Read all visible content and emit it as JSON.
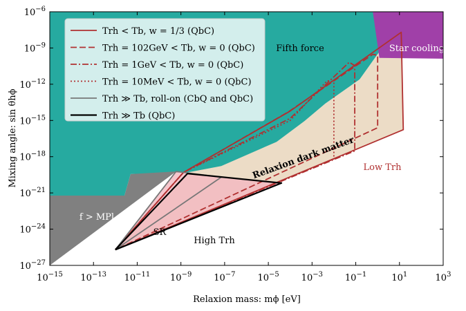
{
  "chart_data": {
    "type": "region",
    "xlabel": "Relaxion mass: mϕ [eV]",
    "ylabel": "Mixing angle: sin θhϕ",
    "xlog": true,
    "ylog": true,
    "xlim": [
      1e-15,
      1000.0
    ],
    "ylim": [
      1e-27,
      1e-06
    ],
    "xticks": [
      {
        "value": 1e-15,
        "label": "10−15"
      },
      {
        "value": 1e-13,
        "label": "10−13"
      },
      {
        "value": 1e-11,
        "label": "10−11"
      },
      {
        "value": 1e-09,
        "label": "10−9"
      },
      {
        "value": 1e-07,
        "label": "10−7"
      },
      {
        "value": 1e-05,
        "label": "10−5"
      },
      {
        "value": 0.001,
        "label": "10−3"
      },
      {
        "value": 0.1,
        "label": "10−1"
      },
      {
        "value": 10,
        "label": "101"
      },
      {
        "value": 1000,
        "label": "103"
      }
    ],
    "yticks": [
      {
        "value": 1e-27,
        "label": "10−27"
      },
      {
        "value": 1e-24,
        "label": "10−24"
      },
      {
        "value": 1e-21,
        "label": "10−21"
      },
      {
        "value": 1e-18,
        "label": "10−18"
      },
      {
        "value": 1e-15,
        "label": "10−15"
      },
      {
        "value": 1e-12,
        "label": "10−12"
      },
      {
        "value": 1e-09,
        "label": "10−9"
      },
      {
        "value": 1e-06,
        "label": "10−6"
      }
    ],
    "regions": [
      {
        "color": "#ecdcc6",
        "points": [
          [
            1e-12,
            2e-26
          ],
          [
            2e-09,
            5e-20
          ],
          [
            2.4e-05,
            1.7e-17
          ],
          [
            0.004,
            2.5e-14
          ],
          [
            0.15,
            2.5e-12
          ],
          [
            1.2,
            5e-10
          ],
          [
            12,
            2e-08
          ],
          [
            15,
            1.7e-16
          ]
        ]
      },
      {
        "color": "#26aaa0",
        "points": [
          [
            1e-15,
            1e-06
          ],
          [
            3,
            1e-06
          ],
          [
            1.2,
            5e-10
          ],
          [
            0.15,
            2.5e-12
          ],
          [
            0.004,
            2.5e-14
          ],
          [
            0.00045,
            9e-16
          ],
          [
            2.4e-05,
            1.7e-17
          ],
          [
            7e-08,
            1.7e-19
          ],
          [
            2e-09,
            5e-20
          ],
          [
            5e-12,
            3.6e-20
          ],
          [
            2.6e-12,
            6e-22
          ],
          [
            1e-15,
            6e-22
          ]
        ]
      },
      {
        "color": "#a040a8",
        "points": [
          [
            0.6,
            1e-06
          ],
          [
            1000,
            1e-06
          ],
          [
            1000,
            1.3e-10
          ],
          [
            1.2,
            1.5e-10
          ]
        ]
      },
      {
        "color": "#808080",
        "points": [
          [
            1e-15,
            1e-27
          ],
          [
            1e-15,
            6e-22
          ],
          [
            2.6e-12,
            6e-22
          ],
          [
            5e-12,
            3.6e-20
          ],
          [
            6e-10,
            6e-20
          ]
        ]
      },
      {
        "color": "#f4b8c0",
        "points": [
          [
            1e-12,
            2e-26
          ],
          [
            6e-10,
            6e-20
          ],
          [
            2e-09,
            4e-20
          ],
          [
            4e-05,
            6.5e-21
          ]
        ]
      }
    ],
    "series": [
      {
        "name": "Trh < Tb, w = 1/3 (QbC)",
        "color": "#b03030",
        "style": "solid",
        "points": [
          [
            1e-12,
            2e-26
          ],
          [
            1.3e-09,
            5e-20
          ],
          [
            0.0001,
            6e-15
          ],
          [
            12,
            2e-08
          ],
          [
            15,
            1.7e-16
          ],
          [
            1e-12,
            2e-26
          ]
        ]
      },
      {
        "name": "Trh = 102GeV < Tb, w = 0 (QbC)",
        "color": "#b03030",
        "style": "dashed",
        "points": [
          [
            1e-12,
            2e-26
          ],
          [
            1.3e-09,
            5e-20
          ],
          [
            8e-05,
            5e-15
          ],
          [
            0.6,
            3e-10
          ],
          [
            1,
            2.5e-10
          ],
          [
            1,
            2.5e-16
          ],
          [
            1e-12,
            2e-26
          ]
        ]
      },
      {
        "name": "Trh = 1GeV < Tb, w = 0 (QbC)",
        "color": "#b03030",
        "style": "dashdot",
        "points": [
          [
            1e-12,
            2e-26
          ],
          [
            1.3e-09,
            5e-20
          ],
          [
            0.0001,
            1.5e-15
          ],
          [
            0.05,
            6.6e-11
          ],
          [
            0.09,
            3.5e-11
          ],
          [
            0.09,
            3e-18
          ],
          [
            1e-12,
            2e-26
          ]
        ]
      },
      {
        "name": "Trh = 10MeV < Tb, w = 0 (QbC)",
        "color": "#b03030",
        "style": "dotted",
        "points": [
          [
            1e-12,
            2e-26
          ],
          [
            1.3e-09,
            5e-20
          ],
          [
            0.0001,
            1e-15
          ],
          [
            0.005,
            2e-12
          ],
          [
            0.01,
            1.5e-12
          ],
          [
            0.01,
            6.5e-19
          ],
          [
            1e-12,
            2e-26
          ]
        ]
      },
      {
        "name": "Trh ≫ Tb, roll-on (CbQ and QbC)",
        "color": "#777777",
        "style": "solid",
        "points": [
          [
            1e-12,
            2e-26
          ],
          [
            6e-10,
            6e-20
          ],
          [
            7e-08,
            2e-20
          ],
          [
            1e-12,
            2e-26
          ]
        ]
      },
      {
        "name": "Trh ≫ Tb (QbC)",
        "color": "#000000",
        "style": "thick",
        "points": [
          [
            1e-12,
            2e-26
          ],
          [
            2e-09,
            4e-20
          ],
          [
            4e-05,
            6.5e-21
          ],
          [
            1e-12,
            2e-26
          ]
        ]
      }
    ],
    "annotations": [
      "Fifth force",
      "Star cooling",
      "Relaxion dark matter",
      "Low Trh",
      "f > MPl",
      "SR",
      "High Trh"
    ]
  }
}
